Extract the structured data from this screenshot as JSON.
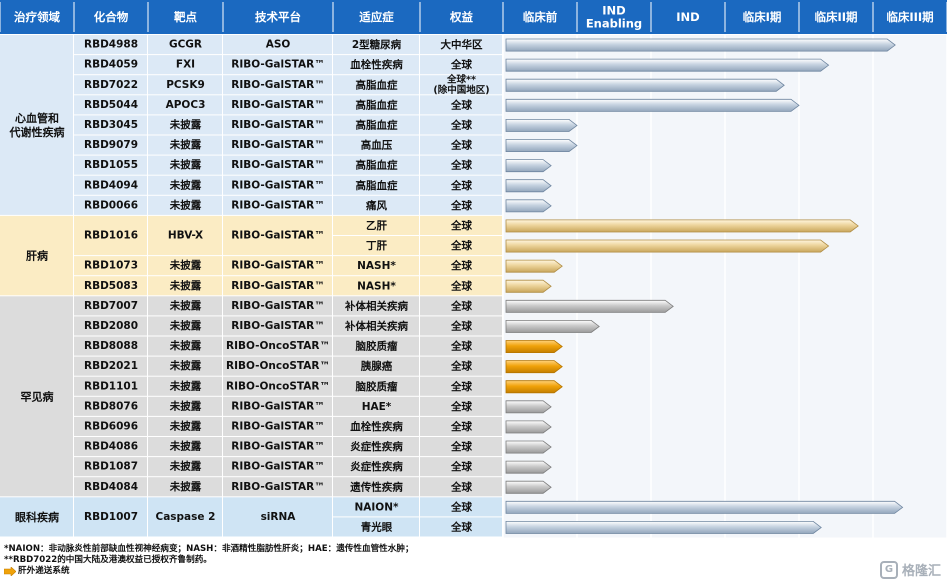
{
  "header": {
    "columns": [
      "治疗领域",
      "化合物",
      "靶点",
      "技术平台",
      "适应症",
      "权益"
    ],
    "phases": [
      {
        "label": "临床前"
      },
      {
        "label": "IND",
        "label2": "Enabling"
      },
      {
        "label": "IND"
      },
      {
        "label": "临床I期"
      },
      {
        "label": "临床II期"
      },
      {
        "label": "临床III期"
      }
    ]
  },
  "areas": [
    {
      "name": "心血管和\n代谢性疾病",
      "rows": [
        0,
        8
      ],
      "color": "#dce9f6",
      "arrow": "blue"
    },
    {
      "name": "肝病",
      "rows": [
        9,
        12
      ],
      "color": "#fbecc4",
      "arrow": "gold"
    },
    {
      "name": "罕见病",
      "rows": [
        13,
        22
      ],
      "color": "#dcdcdc",
      "arrow": "gray"
    },
    {
      "name": "眼科疾病",
      "rows": [
        23,
        24
      ],
      "color": "#cfe4f4",
      "arrow": "blue"
    }
  ],
  "rows": [
    {
      "compound": "RBD4988",
      "target": "GCGR",
      "platform": "ASO",
      "indication": "2型糖尿病",
      "rights": "大中华区",
      "progress": 5.3,
      "arrow": "blue"
    },
    {
      "compound": "RBD4059",
      "target": "FXI",
      "platform": "RIBO-GalSTAR™",
      "indication": "血栓性疾病",
      "rights": "全球",
      "progress": 4.4,
      "arrow": "blue"
    },
    {
      "compound": "RBD7022",
      "target": "PCSK9",
      "platform": "RIBO-GalSTAR™",
      "indication": "高脂血症",
      "rights": "全球**\n(除中国地区)",
      "progress": 3.8,
      "arrow": "blue"
    },
    {
      "compound": "RBD5044",
      "target": "APOC3",
      "platform": "RIBO-GalSTAR™",
      "indication": "高脂血症",
      "rights": "全球",
      "progress": 4.0,
      "arrow": "blue"
    },
    {
      "compound": "RBD3045",
      "target": "未披露",
      "platform": "RIBO-GalSTAR™",
      "indication": "高脂血症",
      "rights": "全球",
      "progress": 1.0,
      "arrow": "blue"
    },
    {
      "compound": "RBD9079",
      "target": "未披露",
      "platform": "RIBO-GalSTAR™",
      "indication": "高血压",
      "rights": "全球",
      "progress": 1.0,
      "arrow": "blue"
    },
    {
      "compound": "RBD1055",
      "target": "未披露",
      "platform": "RIBO-GalSTAR™",
      "indication": "高脂血症",
      "rights": "全球",
      "progress": 0.65,
      "arrow": "blue"
    },
    {
      "compound": "RBD4094",
      "target": "未披露",
      "platform": "RIBO-GalSTAR™",
      "indication": "高脂血症",
      "rights": "全球",
      "progress": 0.65,
      "arrow": "blue"
    },
    {
      "compound": "RBD0066",
      "target": "未披露",
      "platform": "RIBO-GalSTAR™",
      "indication": "痛风",
      "rights": "全球",
      "progress": 0.65,
      "arrow": "blue"
    },
    {
      "compound": "RBD1016",
      "target": "HBV-X",
      "platform": "RIBO-GalSTAR™",
      "indication": "乙肝",
      "rights": "全球",
      "progress": 4.8,
      "arrow": "gold",
      "merge": 2
    },
    {
      "compound": "",
      "target": "",
      "platform": "",
      "indication": "丁肝",
      "rights": "全球",
      "progress": 4.4,
      "arrow": "gold",
      "merged": true
    },
    {
      "compound": "RBD1073",
      "target": "未披露",
      "platform": "RIBO-GalSTAR™",
      "indication": "NASH*",
      "rights": "全球",
      "progress": 0.8,
      "arrow": "gold"
    },
    {
      "compound": "RBD5083",
      "target": "未披露",
      "platform": "RIBO-GalSTAR™",
      "indication": "NASH*",
      "rights": "全球",
      "progress": 0.65,
      "arrow": "gold"
    },
    {
      "compound": "RBD7007",
      "target": "未披露",
      "platform": "RIBO-GalSTAR™",
      "indication": "补体相关疾病",
      "rights": "全球",
      "progress": 2.3,
      "arrow": "gray"
    },
    {
      "compound": "RBD2080",
      "target": "未披露",
      "platform": "RIBO-GalSTAR™",
      "indication": "补体相关疾病",
      "rights": "全球",
      "progress": 1.3,
      "arrow": "gray"
    },
    {
      "compound": "RBD8088",
      "target": "未披露",
      "platform": "RIBO-OncoSTAR™",
      "indication": "脑胶质瘤",
      "rights": "全球",
      "progress": 0.8,
      "arrow": "orange"
    },
    {
      "compound": "RBD2021",
      "target": "未披露",
      "platform": "RIBO-OncoSTAR™",
      "indication": "胰腺癌",
      "rights": "全球",
      "progress": 0.8,
      "arrow": "orange"
    },
    {
      "compound": "RBD1101",
      "target": "未披露",
      "platform": "RIBO-OncoSTAR™",
      "indication": "脑胶质瘤",
      "rights": "全球",
      "progress": 0.8,
      "arrow": "orange"
    },
    {
      "compound": "RBD8076",
      "target": "未披露",
      "platform": "RIBO-GalSTAR™",
      "indication": "HAE*",
      "rights": "全球",
      "progress": 0.65,
      "arrow": "gray"
    },
    {
      "compound": "RBD6096",
      "target": "未披露",
      "platform": "RIBO-GalSTAR™",
      "indication": "血栓性疾病",
      "rights": "全球",
      "progress": 0.65,
      "arrow": "gray"
    },
    {
      "compound": "RBD4086",
      "target": "未披露",
      "platform": "RIBO-GalSTAR™",
      "indication": "炎症性疾病",
      "rights": "全球",
      "progress": 0.65,
      "arrow": "gray"
    },
    {
      "compound": "RBD1087",
      "target": "未披露",
      "platform": "RIBO-GalSTAR™",
      "indication": "炎症性疾病",
      "rights": "全球",
      "progress": 0.65,
      "arrow": "gray"
    },
    {
      "compound": "RBD4084",
      "target": "未披露",
      "platform": "RIBO-GalSTAR™",
      "indication": "遗传性疾病",
      "rights": "全球",
      "progress": 0.65,
      "arrow": "gray"
    },
    {
      "compound": "RBD1007",
      "target": "Caspase 2",
      "platform": "siRNA",
      "indication": "NAION*",
      "rights": "全球",
      "progress": 5.4,
      "arrow": "blue",
      "merge": 2
    },
    {
      "compound": "",
      "target": "",
      "platform": "",
      "indication": "青光眼",
      "rights": "全球",
      "progress": 4.3,
      "arrow": "blue",
      "merged": true
    }
  ],
  "colors": {
    "header_bg": "#1b69c0",
    "header_text": "#ffffff",
    "grid": "#ffffff",
    "phase_bg": "#f3f6fa",
    "blue_arrow": [
      "#ffffff",
      "#c5d2e0",
      "#93a6bc"
    ],
    "gold_arrow": [
      "#fff6df",
      "#ecd39a",
      "#c9a65c"
    ],
    "gray_arrow": [
      "#ffffff",
      "#c9c9c9",
      "#9a9a9a"
    ],
    "orange_arrow": [
      "#ffd27a",
      "#f0a20a",
      "#c47f00"
    ]
  },
  "notes": {
    "line1": "*NAION：非动脉炎性前部缺血性视神经病变；NASH：非酒精性脂肪性肝炎；HAE：遗传性血管性水肿；",
    "line2": "**RBD7022的中国大陆及港澳权益已授权齐鲁制药。",
    "legend": "肝外递送系统",
    "legend_icon": "orange-arrow-icon"
  },
  "watermark": "格隆汇"
}
